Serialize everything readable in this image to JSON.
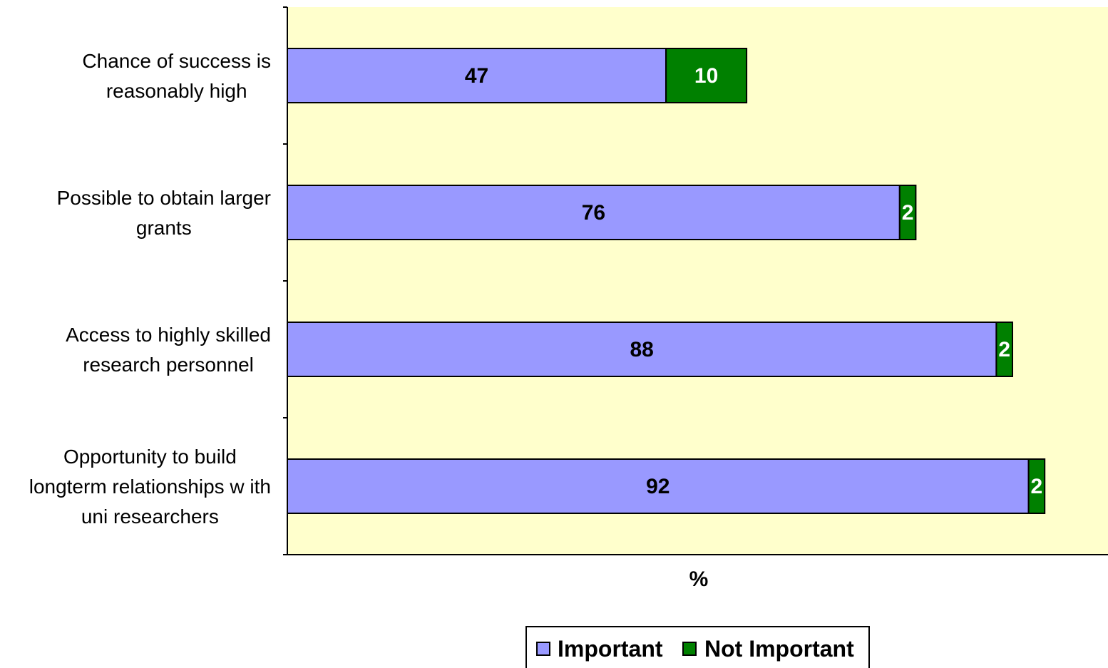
{
  "chart_data": {
    "type": "bar",
    "orientation": "horizontal",
    "stacked": true,
    "categories": [
      [
        "Chance of success is",
        "reasonably high"
      ],
      [
        "Possible to obtain larger",
        "grants"
      ],
      [
        "Access to highly skilled",
        "research personnel"
      ],
      [
        "Opportunity to build",
        "longterm relationships w ith",
        "uni researchers"
      ]
    ],
    "series": [
      {
        "name": "Important",
        "color": "#9999FF",
        "label_color": "#000000",
        "values": [
          47,
          76,
          88,
          92
        ]
      },
      {
        "name": "Not Important",
        "color": "#008000",
        "label_color": "#FFFFFF",
        "values": [
          10,
          2,
          2,
          2
        ]
      }
    ],
    "xlabel": "%",
    "xlim": [
      0,
      100
    ],
    "plot_background": "#FFFFCC",
    "grid": false,
    "legend_position": "bottom"
  }
}
